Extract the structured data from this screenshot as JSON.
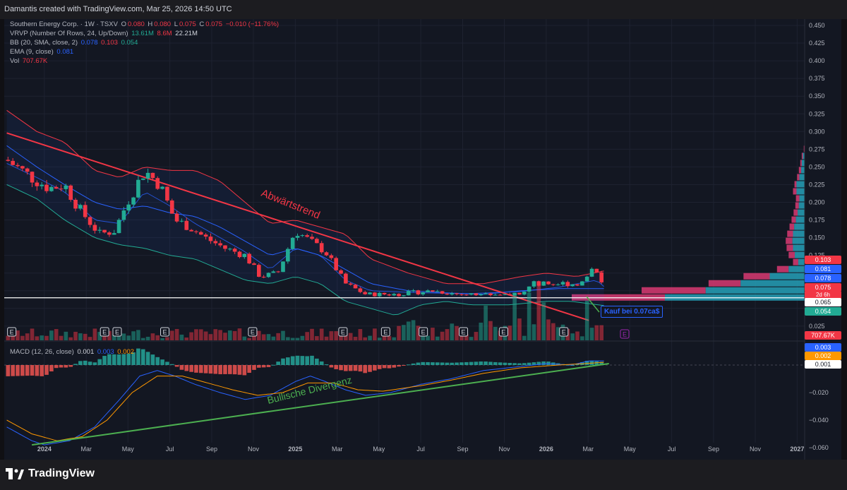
{
  "header": {
    "credit": "Damantis created with TradingView.com, Mar 25, 2026 14:50 UTC"
  },
  "legend": {
    "symbol": "Southern Energy Corp. · 1W · TSXV",
    "o_label": "O",
    "o": "0.080",
    "h_label": "H",
    "h": "0.080",
    "l_label": "L",
    "l": "0.075",
    "c_label": "C",
    "c": "0.075",
    "change": "−0.010 (−11.76%)",
    "vrvp_label": "VRVP (Number Of Rows, 24, Up/Down)",
    "vrvp_up": "13.61M",
    "vrvp_down": "8.6M",
    "vrvp_total": "22.21M",
    "bb_label": "BB (20, SMA, close, 2)",
    "bb_basis": "0.078",
    "bb_upper": "0.103",
    "bb_lower": "0.054",
    "ema_label": "EMA (9, close)",
    "ema": "0.081",
    "vol_label": "Vol",
    "vol": "707.67K",
    "macd_label": "MACD (12, 26, close)",
    "macd_hist": "0.001",
    "macd_line": "0.003",
    "macd_signal": "0.002"
  },
  "colors": {
    "bg": "#131722",
    "up": "#22ab94",
    "down": "#f23645",
    "bb_band": "#f23645",
    "bb_lower": "#22ab94",
    "bb_basis": "#2962ff",
    "ema": "#2962ff",
    "trendline": "#f23645",
    "divergence": "#4caf50",
    "macd_line": "#2962ff",
    "signal_line": "#ff9800",
    "vrvp_up": "#26a0b7",
    "vrvp_down": "#d93a72"
  },
  "annotations": {
    "downtrend": "Abwärtstrend",
    "divergence": "Bullische Divergenz",
    "buy": "Kauf bei 0.07ca$"
  },
  "earnings_marker": "E",
  "price_tags": {
    "bb_upper": "0.103",
    "ema": "0.081",
    "bb_basis": "0.078",
    "last": "0.075",
    "countdown": "2d 6h",
    "line": "0.065",
    "bb_lower": "0.054",
    "vol": "707.67K",
    "macd_line": "0.003",
    "macd_signal": "0.002",
    "macd_hist": "0.001"
  },
  "footer": {
    "brand": "TradingView"
  },
  "chart_data": {
    "type": "candlestick",
    "symbol": "Southern Energy Corp. · 1W · TSXV",
    "price_axis": {
      "ticks": [
        "0.450",
        "0.425",
        "0.400",
        "0.375",
        "0.350",
        "0.325",
        "0.300",
        "0.275",
        "0.250",
        "0.225",
        "0.200",
        "0.175",
        "0.150",
        "0.125",
        "0.025"
      ],
      "range": [
        0.0,
        0.455
      ]
    },
    "macd_axis": {
      "ticks": [
        "−0.020",
        "−0.040",
        "−0.060"
      ],
      "range": [
        -0.061,
        0.012
      ]
    },
    "time_axis": {
      "ticks": [
        {
          "label": "2024",
          "bold": true,
          "year": 2024.0
        },
        {
          "label": "Mar",
          "bold": false,
          "year": 2024.167
        },
        {
          "label": "May",
          "bold": false,
          "year": 2024.333
        },
        {
          "label": "Jul",
          "bold": false,
          "year": 2024.5
        },
        {
          "label": "Sep",
          "bold": false,
          "year": 2024.667
        },
        {
          "label": "Nov",
          "bold": false,
          "year": 2024.833
        },
        {
          "label": "2025",
          "bold": true,
          "year": 2025.0
        },
        {
          "label": "Mar",
          "bold": false,
          "year": 2025.167
        },
        {
          "label": "May",
          "bold": false,
          "year": 2025.333
        },
        {
          "label": "Jul",
          "bold": false,
          "year": 2025.5
        },
        {
          "label": "Sep",
          "bold": false,
          "year": 2025.667
        },
        {
          "label": "Nov",
          "bold": false,
          "year": 2025.833
        },
        {
          "label": "2026",
          "bold": true,
          "year": 2026.0
        },
        {
          "label": "Mar",
          "bold": false,
          "year": 2026.167
        },
        {
          "label": "May",
          "bold": false,
          "year": 2026.333
        },
        {
          "label": "Jul",
          "bold": false,
          "year": 2026.5
        },
        {
          "label": "Sep",
          "bold": false,
          "year": 2026.667
        },
        {
          "label": "Nov",
          "bold": false,
          "year": 2026.833
        },
        {
          "label": "2027",
          "bold": true,
          "year": 2027.0
        }
      ],
      "range": [
        2023.84,
        2027.03
      ]
    },
    "close_keypoints": [
      [
        2023.85,
        0.26
      ],
      [
        2023.95,
        0.235
      ],
      [
        2024.02,
        0.22
      ],
      [
        2024.08,
        0.225
      ],
      [
        2024.14,
        0.19
      ],
      [
        2024.22,
        0.155
      ],
      [
        2024.28,
        0.16
      ],
      [
        2024.33,
        0.2
      ],
      [
        2024.4,
        0.245
      ],
      [
        2024.46,
        0.225
      ],
      [
        2024.52,
        0.175
      ],
      [
        2024.58,
        0.165
      ],
      [
        2024.64,
        0.15
      ],
      [
        2024.72,
        0.135
      ],
      [
        2024.8,
        0.125
      ],
      [
        2024.86,
        0.095
      ],
      [
        2024.93,
        0.1
      ],
      [
        2025.0,
        0.16
      ],
      [
        2025.06,
        0.145
      ],
      [
        2025.12,
        0.13
      ],
      [
        2025.2,
        0.085
      ],
      [
        2025.28,
        0.07
      ],
      [
        2025.4,
        0.07
      ],
      [
        2025.55,
        0.075
      ],
      [
        2025.65,
        0.07
      ],
      [
        2025.78,
        0.07
      ],
      [
        2025.88,
        0.07
      ],
      [
        2025.95,
        0.085
      ],
      [
        2026.08,
        0.085
      ],
      [
        2026.14,
        0.085
      ],
      [
        2026.19,
        0.11
      ],
      [
        2026.215,
        0.09
      ],
      [
        2026.23,
        0.075
      ]
    ],
    "bb_upper_keypoints": [
      [
        2023.85,
        0.33
      ],
      [
        2023.97,
        0.3
      ],
      [
        2024.08,
        0.285
      ],
      [
        2024.2,
        0.245
      ],
      [
        2024.3,
        0.235
      ],
      [
        2024.4,
        0.25
      ],
      [
        2024.5,
        0.245
      ],
      [
        2024.6,
        0.245
      ],
      [
        2024.7,
        0.23
      ],
      [
        2024.8,
        0.2
      ],
      [
        2024.9,
        0.17
      ],
      [
        2025.0,
        0.175
      ],
      [
        2025.1,
        0.165
      ],
      [
        2025.2,
        0.155
      ],
      [
        2025.3,
        0.12
      ],
      [
        2025.45,
        0.1
      ],
      [
        2025.6,
        0.085
      ],
      [
        2025.75,
        0.085
      ],
      [
        2025.9,
        0.095
      ],
      [
        2026.0,
        0.1
      ],
      [
        2026.12,
        0.095
      ],
      [
        2026.23,
        0.103
      ]
    ],
    "bb_lower_keypoints": [
      [
        2023.85,
        0.225
      ],
      [
        2023.97,
        0.205
      ],
      [
        2024.08,
        0.175
      ],
      [
        2024.2,
        0.15
      ],
      [
        2024.3,
        0.14
      ],
      [
        2024.4,
        0.135
      ],
      [
        2024.5,
        0.125
      ],
      [
        2024.6,
        0.12
      ],
      [
        2024.7,
        0.105
      ],
      [
        2024.8,
        0.09
      ],
      [
        2024.9,
        0.085
      ],
      [
        2025.0,
        0.095
      ],
      [
        2025.1,
        0.085
      ],
      [
        2025.2,
        0.06
      ],
      [
        2025.3,
        0.05
      ],
      [
        2025.4,
        0.04
      ],
      [
        2025.5,
        0.055
      ],
      [
        2025.6,
        0.06
      ],
      [
        2025.7,
        0.055
      ],
      [
        2025.85,
        0.055
      ],
      [
        2026.0,
        0.06
      ],
      [
        2026.1,
        0.06
      ],
      [
        2026.23,
        0.054
      ]
    ],
    "bb_basis_keypoints": [
      [
        2023.85,
        0.28
      ],
      [
        2023.97,
        0.25
      ],
      [
        2024.08,
        0.225
      ],
      [
        2024.2,
        0.2
      ],
      [
        2024.3,
        0.19
      ],
      [
        2024.4,
        0.195
      ],
      [
        2024.5,
        0.185
      ],
      [
        2024.6,
        0.18
      ],
      [
        2024.7,
        0.165
      ],
      [
        2024.8,
        0.145
      ],
      [
        2024.9,
        0.125
      ],
      [
        2025.0,
        0.135
      ],
      [
        2025.1,
        0.125
      ],
      [
        2025.2,
        0.105
      ],
      [
        2025.3,
        0.085
      ],
      [
        2025.45,
        0.075
      ],
      [
        2025.6,
        0.072
      ],
      [
        2025.75,
        0.07
      ],
      [
        2025.9,
        0.075
      ],
      [
        2026.05,
        0.078
      ],
      [
        2026.23,
        0.078
      ]
    ],
    "ema_keypoints": [
      [
        2023.85,
        0.255
      ],
      [
        2023.97,
        0.235
      ],
      [
        2024.08,
        0.215
      ],
      [
        2024.2,
        0.175
      ],
      [
        2024.3,
        0.17
      ],
      [
        2024.4,
        0.215
      ],
      [
        2024.5,
        0.195
      ],
      [
        2024.6,
        0.17
      ],
      [
        2024.7,
        0.15
      ],
      [
        2024.8,
        0.13
      ],
      [
        2024.9,
        0.105
      ],
      [
        2025.0,
        0.135
      ],
      [
        2025.1,
        0.125
      ],
      [
        2025.2,
        0.09
      ],
      [
        2025.3,
        0.075
      ],
      [
        2025.5,
        0.072
      ],
      [
        2025.7,
        0.071
      ],
      [
        2025.9,
        0.074
      ],
      [
        2026.05,
        0.08
      ],
      [
        2026.2,
        0.09
      ],
      [
        2026.23,
        0.081
      ]
    ],
    "trendline": [
      [
        2023.85,
        0.298
      ],
      [
        2026.17,
        0.033
      ]
    ],
    "buy_level": 0.065,
    "macd_line_keypoints": [
      [
        2023.85,
        -0.045
      ],
      [
        2023.95,
        -0.055
      ],
      [
        2024.0,
        -0.058
      ],
      [
        2024.1,
        -0.055
      ],
      [
        2024.2,
        -0.045
      ],
      [
        2024.3,
        -0.025
      ],
      [
        2024.38,
        -0.008
      ],
      [
        2024.45,
        -0.004
      ],
      [
        2024.52,
        -0.008
      ],
      [
        2024.6,
        -0.014
      ],
      [
        2024.7,
        -0.02
      ],
      [
        2024.8,
        -0.025
      ],
      [
        2024.9,
        -0.022
      ],
      [
        2025.0,
        -0.012
      ],
      [
        2025.06,
        -0.008
      ],
      [
        2025.12,
        -0.012
      ],
      [
        2025.2,
        -0.018
      ],
      [
        2025.28,
        -0.022
      ],
      [
        2025.38,
        -0.02
      ],
      [
        2025.5,
        -0.014
      ],
      [
        2025.62,
        -0.01
      ],
      [
        2025.75,
        -0.004
      ],
      [
        2025.9,
        -0.001
      ],
      [
        2026.0,
        0.001
      ],
      [
        2026.1,
        0.0
      ],
      [
        2026.17,
        0.003
      ],
      [
        2026.23,
        0.003
      ]
    ],
    "signal_line_keypoints": [
      [
        2023.85,
        -0.04
      ],
      [
        2023.95,
        -0.05
      ],
      [
        2024.05,
        -0.055
      ],
      [
        2024.15,
        -0.052
      ],
      [
        2024.25,
        -0.04
      ],
      [
        2024.35,
        -0.02
      ],
      [
        2024.45,
        -0.008
      ],
      [
        2024.55,
        -0.008
      ],
      [
        2024.65,
        -0.013
      ],
      [
        2024.75,
        -0.018
      ],
      [
        2024.85,
        -0.022
      ],
      [
        2024.95,
        -0.02
      ],
      [
        2025.05,
        -0.013
      ],
      [
        2025.15,
        -0.013
      ],
      [
        2025.25,
        -0.018
      ],
      [
        2025.35,
        -0.019
      ],
      [
        2025.5,
        -0.015
      ],
      [
        2025.62,
        -0.011
      ],
      [
        2025.75,
        -0.006
      ],
      [
        2025.9,
        -0.002
      ],
      [
        2026.05,
        0.0
      ],
      [
        2026.15,
        0.001
      ],
      [
        2026.23,
        0.002
      ]
    ],
    "divergence_line": [
      [
        2023.95,
        -0.058
      ],
      [
        2026.25,
        0.001
      ]
    ],
    "earnings_years": [
      2023.87,
      2024.24,
      2024.29,
      2024.48,
      2024.83,
      2025.19,
      2025.36,
      2025.51,
      2025.67,
      2025.83,
      2026.07
    ]
  }
}
